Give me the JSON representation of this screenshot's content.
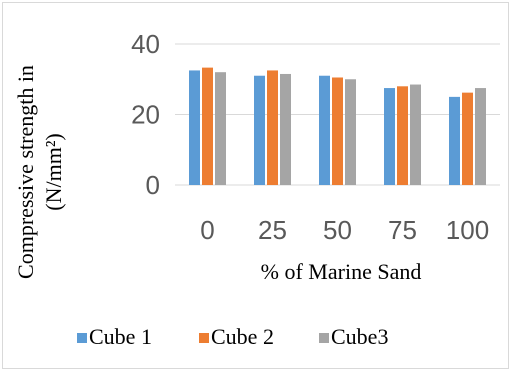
{
  "chart_data": {
    "type": "bar",
    "categories": [
      "0",
      "25",
      "50",
      "75",
      "100"
    ],
    "series": [
      {
        "name": "Cube 1",
        "values": [
          32.5,
          31.0,
          31.0,
          27.5,
          25.0
        ],
        "color": "#5b9bd5"
      },
      {
        "name": "Cube 2",
        "values": [
          33.3,
          32.5,
          30.5,
          28.0,
          26.2
        ],
        "color": "#ed7d31"
      },
      {
        "name": "Cube3",
        "values": [
          32.0,
          31.5,
          30.0,
          28.5,
          27.5
        ],
        "color": "#a5a5a5"
      }
    ],
    "xlabel": "% of Marine Sand",
    "ylabel_lines": [
      "Compressive strength in",
      "(N/mm²)"
    ],
    "ylim": [
      0,
      40
    ],
    "yticks": [
      "0",
      "20",
      "40"
    ],
    "grid": true,
    "gridline_color": "#d9d9d9",
    "legend_position": "bottom"
  }
}
